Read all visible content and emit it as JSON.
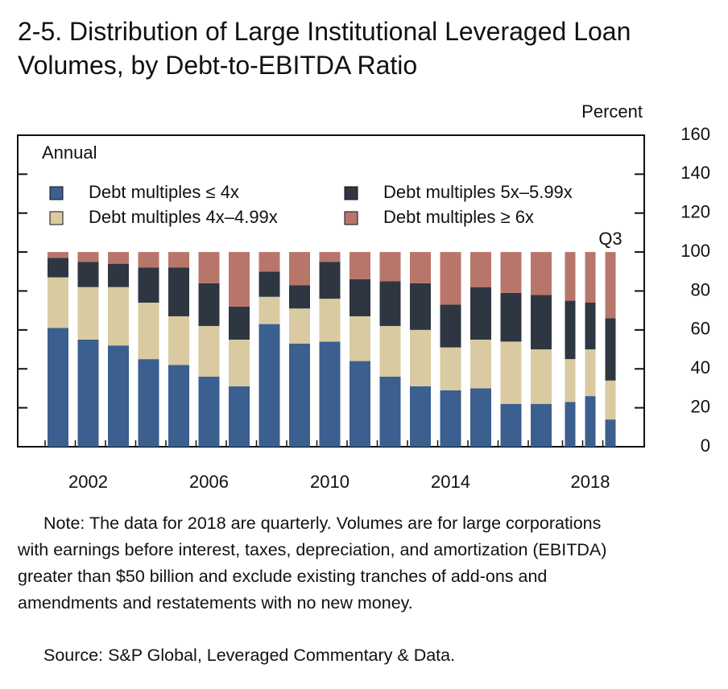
{
  "chart_data": {
    "type": "stacked_bar",
    "title": "2-5. Distribution of Large Institutional Leveraged Loan Volumes, by Debt-to-EBITDA Ratio",
    "y_axis_label": "Percent",
    "panel_label": "Annual",
    "annotation": "Q3",
    "categories": [
      null,
      "2002",
      null,
      null,
      null,
      "2006",
      null,
      null,
      null,
      "2010",
      null,
      null,
      null,
      "2014",
      null,
      null,
      null,
      null,
      "2018",
      null
    ],
    "series": [
      {
        "name": "Debt multiples ≤ 4x",
        "color": "#3b5f8e",
        "values": [
          61,
          55,
          52,
          45,
          42,
          36,
          31,
          63,
          53,
          54,
          44,
          36,
          31,
          29,
          30,
          22,
          22,
          23,
          26,
          14
        ]
      },
      {
        "name": "Debt multiples 4x–4.99x",
        "color": "#d9caa1",
        "values": [
          26,
          27,
          30,
          29,
          25,
          26,
          24,
          14,
          18,
          22,
          23,
          26,
          29,
          22,
          25,
          32,
          28,
          22,
          24,
          20
        ]
      },
      {
        "name": "Debt multiples 5x–5.99x",
        "color": "#2e3641",
        "values": [
          10,
          13,
          12,
          18,
          25,
          22,
          17,
          13,
          12,
          19,
          19,
          23,
          24,
          22,
          27,
          25,
          28,
          30,
          24,
          32
        ]
      },
      {
        "name": "Debt multiples ≥ 6x",
        "color": "#b8766b",
        "values": [
          3,
          5,
          6,
          8,
          8,
          16,
          28,
          10,
          17,
          5,
          14,
          15,
          16,
          27,
          18,
          21,
          22,
          25,
          26,
          34
        ]
      }
    ],
    "ylim": [
      0,
      160
    ],
    "yticks": [
      0,
      20,
      40,
      60,
      80,
      100,
      120,
      140,
      160
    ],
    "note": "Note: The data for 2018 are quarterly. Volumes are for large corporations with earnings before interest, taxes, depreciation, and amortization (EBITDA) greater than $50 billion and exclude existing tranches of add-ons and amendments and restatements with no new money.",
    "source": "Source: S&P Global, Leveraged Commentary & Data."
  }
}
